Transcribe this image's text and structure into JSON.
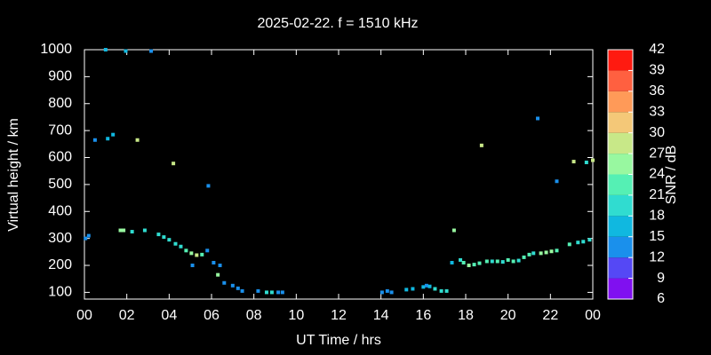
{
  "chart_data": {
    "type": "scatter",
    "title": "2025-02-22. f = 1510 kHz",
    "x_label": "UT Time / hrs",
    "y_label": "Virtual height / km",
    "xlim": [
      0,
      24
    ],
    "xticks": [
      {
        "value": 0,
        "label": "00"
      },
      {
        "value": 2,
        "label": "02"
      },
      {
        "value": 4,
        "label": "04"
      },
      {
        "value": 6,
        "label": "06"
      },
      {
        "value": 8,
        "label": "08"
      },
      10,
      12,
      14,
      16,
      18,
      20,
      22,
      {
        "value": 24,
        "label": "00"
      }
    ],
    "ylim": [
      75,
      1000
    ],
    "yticks": [
      100,
      200,
      300,
      400,
      500,
      600,
      700,
      800,
      900,
      1000
    ],
    "x": [
      0.05,
      0.2,
      0.5,
      1.0,
      1.1,
      1.35,
      1.7,
      1.85,
      1.95,
      2.25,
      2.5,
      2.85,
      3.15,
      3.5,
      3.75,
      4.0,
      4.2,
      4.3,
      4.55,
      4.8,
      5.05,
      5.1,
      5.3,
      5.55,
      5.8,
      5.85,
      6.1,
      6.3,
      6.4,
      6.6,
      7.0,
      7.25,
      7.45,
      8.2,
      8.6,
      8.85,
      9.15,
      9.35,
      14.05,
      14.3,
      14.5,
      15.2,
      15.5,
      16.0,
      16.15,
      16.3,
      16.55,
      16.85,
      17.1,
      17.35,
      17.45,
      17.75,
      17.9,
      18.15,
      18.4,
      18.65,
      18.75,
      19.0,
      19.25,
      19.5,
      19.75,
      20.0,
      20.25,
      20.5,
      20.75,
      21.0,
      21.2,
      21.4,
      21.55,
      21.8,
      22.05,
      22.3,
      22.3,
      22.9,
      23.1,
      23.3,
      23.55,
      23.7,
      23.85,
      24.0
    ],
    "y": [
      300,
      310,
      665,
      1000,
      670,
      685,
      330,
      330,
      995,
      325,
      665,
      330,
      995,
      315,
      305,
      295,
      578,
      280,
      270,
      255,
      245,
      200,
      238,
      240,
      255,
      495,
      210,
      165,
      200,
      135,
      125,
      115,
      105,
      105,
      100,
      100,
      100,
      100,
      100,
      105,
      100,
      110,
      113,
      120,
      125,
      122,
      113,
      105,
      105,
      210,
      330,
      220,
      210,
      200,
      203,
      208,
      645,
      215,
      215,
      215,
      213,
      220,
      215,
      218,
      230,
      240,
      245,
      745,
      245,
      248,
      252,
      512,
      255,
      278,
      585,
      285,
      288,
      582,
      295,
      590
    ],
    "snr": [
      12,
      12,
      12,
      15,
      15,
      15,
      24,
      24,
      15,
      18,
      27,
      18,
      12,
      18,
      18,
      18,
      27,
      18,
      18,
      21,
      24,
      12,
      27,
      21,
      12,
      12,
      12,
      24,
      12,
      12,
      12,
      12,
      12,
      12,
      18,
      18,
      12,
      12,
      12,
      12,
      12,
      15,
      15,
      15,
      12,
      15,
      18,
      18,
      18,
      15,
      24,
      18,
      21,
      24,
      21,
      21,
      27,
      21,
      18,
      21,
      18,
      21,
      21,
      18,
      21,
      21,
      18,
      12,
      24,
      24,
      24,
      12,
      21,
      21,
      27,
      18,
      18,
      18,
      18,
      27
    ],
    "colorbar": {
      "label": "SNR / dB",
      "zlim": [
        6,
        42
      ],
      "zticks": [
        6,
        9,
        12,
        15,
        18,
        21,
        24,
        27,
        30,
        33,
        36,
        39,
        42
      ],
      "colors": [
        "#8010f0",
        "#5548f5",
        "#1a90ec",
        "#10b8e0",
        "#30dcd0",
        "#55f0b4",
        "#98f8a0",
        "#c8e888",
        "#f4c878",
        "#ff9a58",
        "#ff6040",
        "#ff1a10"
      ]
    }
  }
}
